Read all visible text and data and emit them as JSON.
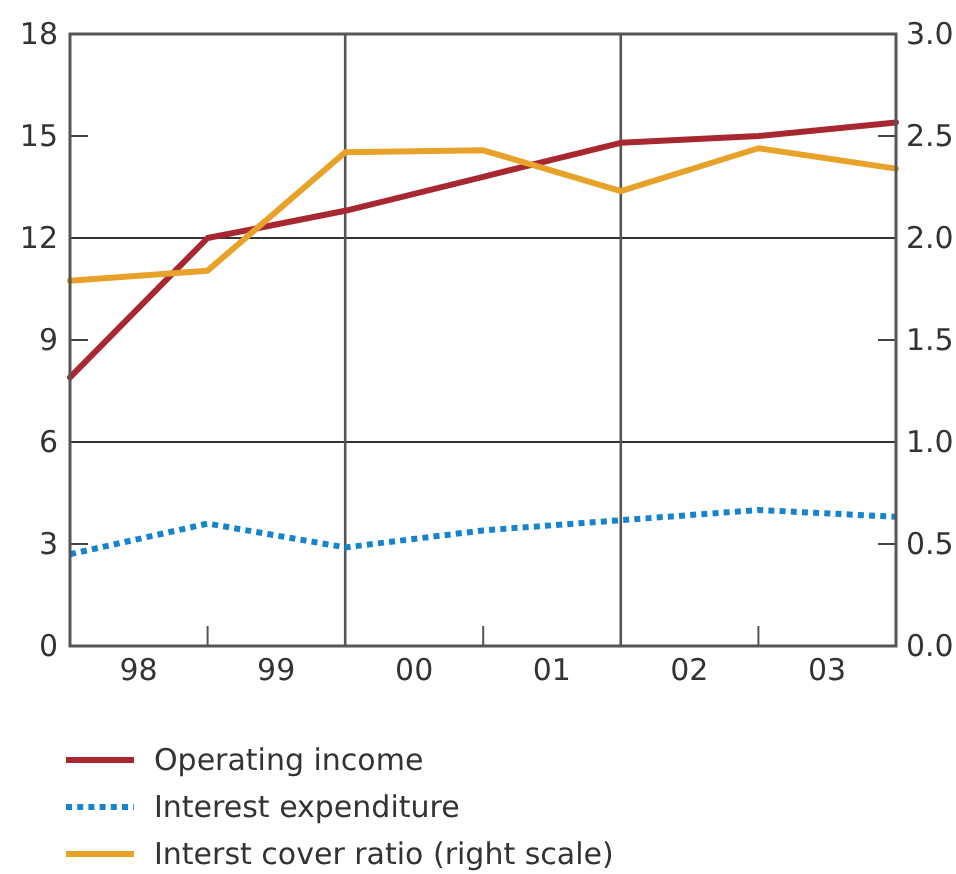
{
  "chart_data": {
    "type": "line",
    "x": [
      "1998-01-01",
      "1999-01-01",
      "2000-01-01",
      "2001-01-01",
      "2002-01-01",
      "2003-01-01",
      "2004-01-01"
    ],
    "xlim": [
      "1998-01-01",
      "2004-01-01"
    ],
    "xticks": [
      {
        "value": "1998-01-01",
        "label": null
      },
      {
        "value": "1998-07-02",
        "label": "98"
      },
      {
        "value": "1999-01-01",
        "label": null
      },
      {
        "value": "1999-07-02",
        "label": "99"
      },
      {
        "value": "2000-01-01",
        "label": null
      },
      {
        "value": "2000-07-02",
        "label": "00"
      },
      {
        "value": "2001-01-01",
        "label": null
      },
      {
        "value": "2001-07-02",
        "label": "01"
      },
      {
        "value": "2002-01-01",
        "label": null
      },
      {
        "value": "2002-07-02",
        "label": "02"
      },
      {
        "value": "2003-01-01",
        "label": null
      },
      {
        "value": "2003-07-02",
        "label": "03"
      },
      {
        "value": "2004-01-01",
        "label": null
      }
    ],
    "ylim": [
      0,
      18
    ],
    "yticks": [
      0,
      3,
      6,
      9,
      12,
      15,
      18
    ],
    "y2lim": [
      0,
      3
    ],
    "y2ticks": [
      {
        "value": 0,
        "label": "0.0"
      },
      {
        "value": 0.5,
        "label": "0.5"
      },
      {
        "value": 1,
        "label": "1.0"
      },
      {
        "value": 1.5,
        "label": "1.5"
      },
      {
        "value": 2,
        "label": "2.0"
      },
      {
        "value": 2.5,
        "label": "2.5"
      },
      {
        "value": 3,
        "label": "3.0"
      }
    ],
    "grid": true,
    "legend": "bottom",
    "series": [
      {
        "name": "Operating income",
        "color": "#a82832",
        "line_style": "solid",
        "values": [
          7.9,
          12.0,
          12.8,
          13.8,
          14.8,
          15.0,
          15.4
        ]
      },
      {
        "name": "Interest expenditure",
        "color": "#1584cc",
        "line_style": "dotted",
        "values": [
          2.7,
          3.6,
          2.9,
          3.4,
          3.7,
          4.0,
          3.8
        ]
      },
      {
        "name": "Interst cover ratio (right scale)",
        "color": "#e8a22a",
        "line_style": "solid",
        "axis": "y2",
        "values": [
          1.79,
          1.84,
          2.42,
          2.43,
          2.23,
          2.44,
          2.34
        ]
      }
    ]
  }
}
